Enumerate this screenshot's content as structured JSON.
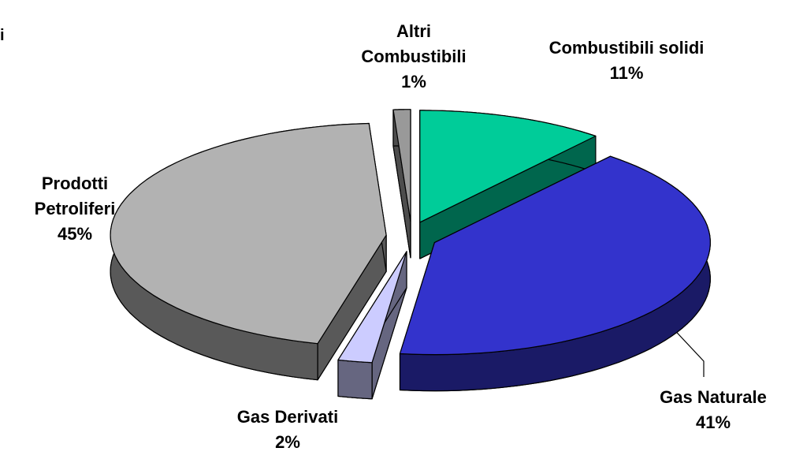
{
  "chart_data": {
    "type": "pie3d",
    "title": "i",
    "categories": [
      "Combustibili solidi",
      "Gas Naturale",
      "Gas Derivati",
      "Prodotti Petroliferi",
      "Altri Combustibili"
    ],
    "values": [
      11,
      41,
      2,
      45,
      1
    ],
    "value_labels": [
      "11%",
      "41%",
      "2%",
      "45%",
      "1%"
    ],
    "colors": [
      "#00cc99",
      "#3333cc",
      "#ccccff",
      "#b2b2b2",
      "#999999"
    ]
  }
}
